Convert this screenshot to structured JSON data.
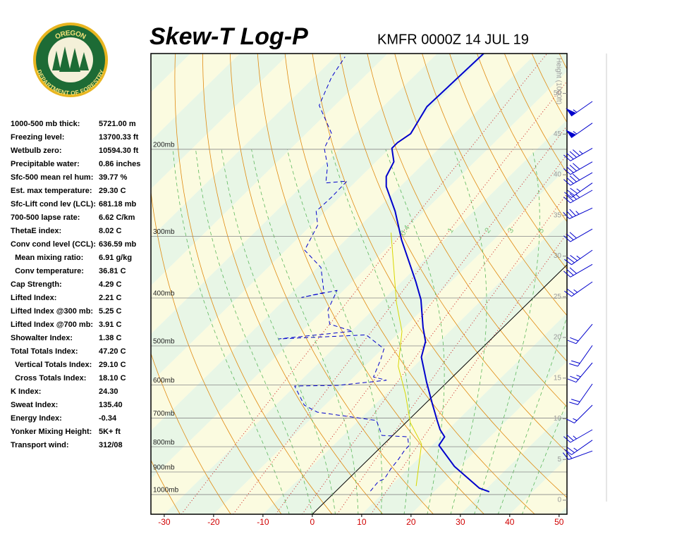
{
  "header": {
    "title": "Skew-T Log-P",
    "station": "KMFR 0000Z 14 JUL 19"
  },
  "logo": {
    "top": "OREGON",
    "bottom": "DEPARTMENT OF FORESTRY"
  },
  "indices": [
    [
      "1000-500 mb thick:",
      "5721.00 m"
    ],
    [
      "Freezing level:",
      "13700.33 ft"
    ],
    [
      "Wetbulb zero:",
      "10594.30 ft"
    ],
    [
      "Precipitable water:",
      "0.86 inches"
    ],
    [
      "Sfc-500 mean rel hum:",
      "39.77 %"
    ],
    [
      "Est. max temperature:",
      "29.30 C"
    ],
    [
      "Sfc-Lift cond lev (LCL):",
      "681.18 mb"
    ],
    [
      "700-500 lapse rate:",
      "6.62 C/km"
    ],
    [
      "ThetaE index:",
      "8.02 C"
    ],
    [
      "Conv cond level (CCL):",
      "636.59 mb"
    ],
    [
      "  Mean mixing ratio:",
      "6.91 g/kg"
    ],
    [
      "  Conv temperature:",
      "36.81 C"
    ],
    [
      "Cap Strength:",
      "4.29 C"
    ],
    [
      "Lifted Index:",
      "2.21 C"
    ],
    [
      "Lifted Index @300 mb:",
      "5.25 C"
    ],
    [
      "Lifted Index @700 mb:",
      "3.91 C"
    ],
    [
      "Showalter Index:",
      "1.38 C"
    ],
    [
      "Total Totals Index:",
      "47.20 C"
    ],
    [
      "  Vertical Totals Index:",
      "29.10 C"
    ],
    [
      "  Cross Totals Index:",
      "18.10 C"
    ],
    [
      "K Index:",
      "24.30"
    ],
    [
      "Sweat Index:",
      "135.40"
    ],
    [
      "Energy Index:",
      "-0.34"
    ],
    [
      "Yonker Mixing Height:",
      "5K+ ft"
    ],
    [
      "Transport wind:",
      "312/08"
    ]
  ],
  "chart_data": {
    "type": "skew-t",
    "xlim": [
      -32.7,
      51.6
    ],
    "xticks": [
      -30,
      -20,
      -10,
      0,
      10,
      20,
      30,
      40,
      50
    ],
    "ylim": [
      1096,
      128
    ],
    "log_y": true,
    "yticks": [
      {
        "value": 200,
        "label": "200mb"
      },
      {
        "value": 300,
        "label": "300mb"
      },
      {
        "value": 400,
        "label": "400mb"
      },
      {
        "value": 500,
        "label": "500mb"
      },
      {
        "value": 600,
        "label": "600mb"
      },
      {
        "value": 700,
        "label": "700mb"
      },
      {
        "value": 800,
        "label": "800mb"
      },
      {
        "value": 900,
        "label": "900mb"
      },
      {
        "value": 1000,
        "label": "1000mb"
      }
    ],
    "y2label": "Height (1000ft)",
    "y2lim": [
      -1.73,
      54.9
    ],
    "y2ticks": [
      0,
      5,
      10,
      15,
      20,
      25,
      30,
      35,
      40,
      45,
      50
    ],
    "mixing_ratios": [
      0.4,
      1,
      2,
      3,
      5,
      8
    ],
    "series": [
      {
        "color": "#0000cc",
        "dashed": false,
        "width": 2,
        "pressure": [
          987,
          971,
          877,
          795,
          764,
          739,
          708,
          653,
          593,
          527,
          490,
          459,
          403,
          371,
          305,
          267,
          238,
          227,
          212,
          199,
          194,
          186,
          164,
          128
        ],
        "values": [
          31.2,
          28.5,
          18.9,
          11.4,
          10.8,
          8.4,
          5.9,
          1.3,
          -4.1,
          -10.4,
          -12.8,
          -16.2,
          -22.4,
          -27.1,
          -38.7,
          -45.9,
          -52.8,
          -54.9,
          -56.4,
          -59.6,
          -59.6,
          -58.8,
          -61.1,
          -60.6
        ]
      },
      {
        "color": "#0000cc",
        "dashed": true,
        "width": 1,
        "pressure": [
          984,
          940,
          930,
          886,
          849,
          816,
          797,
          764,
          759,
          708,
          681,
          659,
          603,
          601,
          587,
          578,
          532,
          507,
          475,
          484,
          467,
          452,
          423,
          386,
          399,
          390,
          347,
          320,
          285,
          267,
          250,
          232,
          234,
          216,
          199,
          186,
          163,
          143,
          130
        ],
        "values": [
          7.0,
          6.6,
          7.3,
          6.5,
          6.1,
          5.5,
          5.4,
          3.3,
          -2.2,
          -6.4,
          -20.1,
          -24.2,
          -30.1,
          -21.4,
          -12.7,
          -16.0,
          -18.2,
          -19.7,
          -26.2,
          -43.1,
          -29.7,
          -35.8,
          -39.1,
          -41.3,
          -47.0,
          -43.5,
          -49.3,
          -56.2,
          -58.7,
          -61.9,
          -61.7,
          -61.9,
          -65.8,
          -69.0,
          -73.3,
          -74.8,
          -83.2,
          -86.5,
          -88.0
        ]
      },
      {
        "color": "#d8d800",
        "dashed": false,
        "width": 1,
        "pressure": [
          961,
          790,
          715,
          627,
          550,
          467,
          409,
          295
        ],
        "values": [
          15.2,
          7.6,
          0.9,
          -5.9,
          -13.2,
          -19.7,
          -26.7,
          -42.3
        ]
      }
    ],
    "winds": {
      "color": "#0000cc",
      "pressure": [
        160,
        177,
        199,
        212,
        223,
        234,
        242,
        263,
        290,
        320,
        342,
        371,
        452,
        499,
        541,
        597,
        659,
        739,
        776,
        816
      ],
      "direction": [
        235,
        235,
        240,
        240,
        240,
        235,
        240,
        245,
        240,
        235,
        240,
        235,
        220,
        215,
        220,
        215,
        225,
        240,
        235,
        250
      ],
      "speed": [
        55,
        55,
        45,
        40,
        40,
        35,
        35,
        35,
        30,
        35,
        30,
        25,
        20,
        20,
        25,
        20,
        15,
        25,
        25,
        20
      ]
    }
  }
}
